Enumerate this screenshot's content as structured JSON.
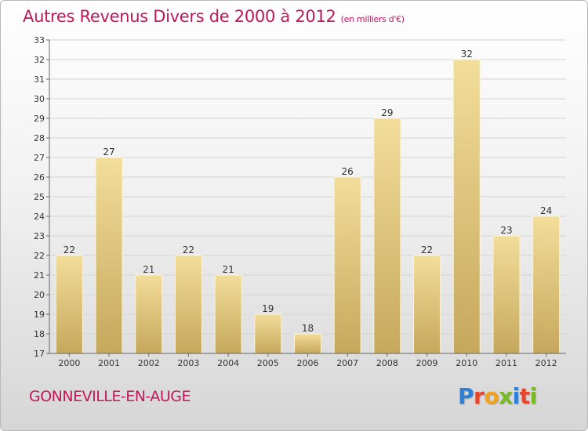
{
  "header": {
    "title": "Autres Revenus Divers de 2000 à 2012",
    "subtitle": "(en milliers d'€)"
  },
  "footer": {
    "commune": "GONNEVILLE-EN-AUGE",
    "logo_letters": [
      "P",
      "r",
      "o",
      "x",
      "i",
      "t",
      "i"
    ]
  },
  "colors": {
    "title": "#c0185a",
    "bar_light": "#f2dd9a",
    "bar_dark": "#c6a85c",
    "logo": [
      "#2e7fd6",
      "#e8452c",
      "#f2a11d",
      "#7ab929",
      "#2e7fd6",
      "#e8452c",
      "#7ab929"
    ]
  },
  "chart_data": {
    "type": "bar",
    "categories": [
      "2000",
      "2001",
      "2002",
      "2003",
      "2004",
      "2005",
      "2006",
      "2007",
      "2008",
      "2009",
      "2010",
      "2011",
      "2012"
    ],
    "values": [
      22,
      27,
      21,
      22,
      21,
      19,
      18,
      26,
      29,
      22,
      32,
      23,
      24
    ],
    "title": "Autres Revenus Divers de 2000 à 2012",
    "ylim": [
      17,
      33
    ],
    "yticks": [
      17,
      18,
      19,
      20,
      21,
      22,
      23,
      24,
      25,
      26,
      27,
      28,
      29,
      30,
      31,
      32,
      33
    ],
    "grid": true,
    "data_labels": true
  }
}
